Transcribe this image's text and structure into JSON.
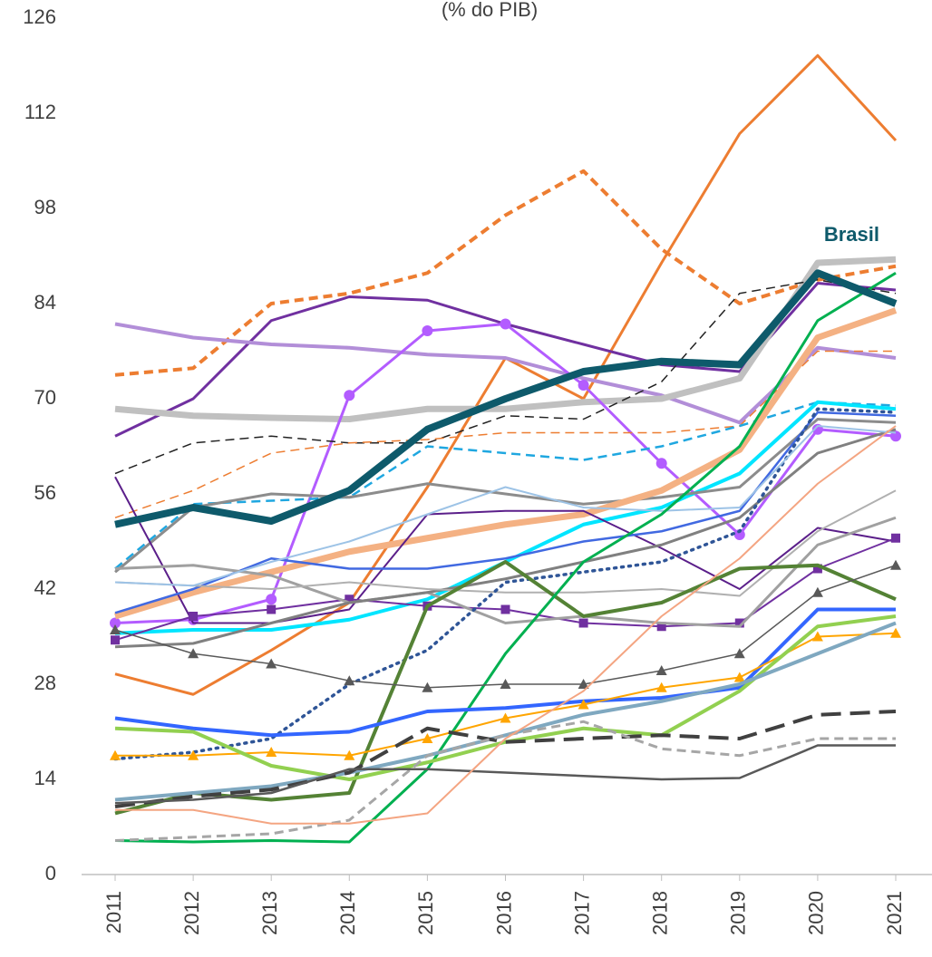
{
  "chart_data": {
    "type": "line",
    "subtitle": "(% do PIB)",
    "categories": [
      "2011",
      "2012",
      "2013",
      "2014",
      "2015",
      "2016",
      "2017",
      "2018",
      "2019",
      "2020",
      "2021"
    ],
    "ylim": [
      0,
      126
    ],
    "yticks": [
      0,
      14,
      28,
      42,
      56,
      70,
      84,
      98,
      112,
      126
    ],
    "grid": false,
    "series": [
      {
        "name": "Brasil",
        "color": "#0e5a6b",
        "width": 8,
        "values": [
          51.5,
          54,
          52,
          56.5,
          65.5,
          70,
          74,
          75.5,
          75,
          88.5,
          84
        ]
      },
      {
        "color": "#ed7d31",
        "width": 3,
        "values": [
          29.5,
          26.5,
          33,
          40,
          57,
          76,
          70,
          90,
          109,
          120.5,
          108
        ]
      },
      {
        "color": "#ed7d31",
        "width": 4,
        "dash": "dashed",
        "values": [
          73.5,
          74.5,
          84,
          85.5,
          88.5,
          97,
          103.5,
          92,
          84,
          87.5,
          89.5
        ]
      },
      {
        "color": "#7030a0",
        "width": 3,
        "values": [
          64.5,
          70,
          81.5,
          85,
          84.5,
          81,
          78,
          75,
          74,
          87,
          86
        ]
      },
      {
        "color": "#b28ed8",
        "width": 4,
        "values": [
          81,
          79,
          78,
          77.5,
          76.5,
          76,
          73,
          70.5,
          66.5,
          77.5,
          76
        ]
      },
      {
        "color": "#c0c0c0",
        "width": 7,
        "values": [
          68.5,
          67.5,
          67.2,
          67,
          68.5,
          68.5,
          69.5,
          70,
          73,
          90,
          90.5
        ]
      },
      {
        "color": "#b35cff",
        "width": 3,
        "marker": "circle",
        "values": [
          37,
          37.5,
          40.5,
          70.5,
          80,
          81,
          72,
          60.5,
          50,
          65.5,
          64.5
        ]
      },
      {
        "color": "#222222",
        "width": 1.5,
        "dash": "dashed",
        "values": [
          59,
          63.5,
          64.5,
          63.5,
          63.5,
          67.5,
          67,
          72.5,
          85.5,
          87.5,
          85.5
        ]
      },
      {
        "color": "#ed7d31",
        "width": 1.5,
        "dash": "dashed",
        "values": [
          52.5,
          56.5,
          62,
          63.5,
          64,
          65,
          65,
          65,
          66,
          77,
          77
        ]
      },
      {
        "color": "#1fa7e0",
        "width": 2.5,
        "dash": "dashed",
        "values": [
          45,
          54.5,
          55,
          55.5,
          63,
          62,
          61,
          63,
          66,
          69.5,
          69
        ]
      },
      {
        "color": "#00e5ff",
        "width": 4,
        "values": [
          35.5,
          36,
          36,
          37.5,
          40.5,
          46,
          51.5,
          54,
          59,
          69.5,
          68.5
        ]
      },
      {
        "color": "#8c8c8c",
        "width": 3,
        "values": [
          44.5,
          54,
          56,
          55.5,
          57.5,
          56,
          54.5,
          55.5,
          57,
          67,
          66.5
        ]
      },
      {
        "color": "#f4b183",
        "width": 7,
        "values": [
          38,
          41.5,
          44.5,
          47.5,
          49.5,
          51.5,
          53,
          56.5,
          62.5,
          79,
          83
        ]
      },
      {
        "color": "#5b1f8a",
        "width": 2,
        "values": [
          58.5,
          37,
          37,
          39,
          53,
          53.5,
          53.5,
          48,
          42,
          51,
          49
        ]
      },
      {
        "color": "#7030a0",
        "width": 2,
        "marker": "square",
        "values": [
          34.5,
          38,
          39,
          40.5,
          39.5,
          39,
          37,
          36.5,
          37,
          45,
          49.5
        ]
      },
      {
        "color": "#4169e1",
        "width": 2.5,
        "values": [
          38.5,
          42,
          46.5,
          45,
          45,
          46.5,
          49,
          50.5,
          53.5,
          68,
          67.5
        ]
      },
      {
        "color": "#a0a0a0",
        "width": 3,
        "values": [
          45,
          45.5,
          44,
          40,
          41.5,
          37,
          38,
          37,
          36.5,
          48.5,
          52.5
        ]
      },
      {
        "color": "#808080",
        "width": 3,
        "values": [
          33.5,
          34,
          37,
          40,
          41.5,
          43.5,
          46,
          48.5,
          52.5,
          62,
          65.5
        ]
      },
      {
        "color": "#b0b0b0",
        "width": 2,
        "values": [
          43,
          42.5,
          42,
          43,
          42,
          41.5,
          41.5,
          42,
          41,
          50.5,
          56.5
        ]
      },
      {
        "color": "#2f5597",
        "width": 3.5,
        "dash": "dotted",
        "values": [
          17,
          18,
          20,
          28,
          33,
          43,
          44.5,
          46,
          50.5,
          68.5,
          68
        ]
      },
      {
        "color": "#9dc3e6",
        "width": 2,
        "values": [
          43,
          42.5,
          46,
          49,
          53,
          57,
          54,
          53.5,
          54,
          66,
          65
        ]
      },
      {
        "color": "#548235",
        "width": 4,
        "values": [
          9,
          12,
          11,
          12,
          39.5,
          46,
          38,
          40,
          45,
          45.5,
          40.5
        ]
      },
      {
        "color": "#00b050",
        "width": 3,
        "values": [
          5,
          4.8,
          5,
          4.8,
          15.5,
          32.5,
          46,
          53,
          63,
          81.5,
          88.5
        ]
      },
      {
        "color": "#595959",
        "width": 1.5,
        "marker": "triangle",
        "values": [
          36,
          32.5,
          31,
          28.5,
          27.5,
          28,
          28,
          30,
          32.5,
          41.5,
          45.5
        ]
      },
      {
        "color": "#3366ff",
        "width": 4,
        "values": [
          23,
          21.5,
          20.5,
          21,
          24,
          24.5,
          25.5,
          26,
          27.5,
          39,
          39
        ]
      },
      {
        "color": "#ffa500",
        "width": 2,
        "marker": "triangle",
        "values": [
          17.5,
          17.5,
          18,
          17.5,
          20,
          23,
          25,
          27.5,
          29,
          35,
          35.5
        ]
      },
      {
        "color": "#92d050",
        "width": 4,
        "values": [
          21.5,
          21,
          16,
          14,
          16.5,
          19.5,
          21.5,
          20.5,
          27,
          36.5,
          38
        ]
      },
      {
        "color": "#7fa8c0",
        "width": 4,
        "values": [
          11,
          12,
          13,
          15,
          17.5,
          20.5,
          23.5,
          25.5,
          28,
          32.5,
          37
        ]
      },
      {
        "color": "#404040",
        "width": 4,
        "dash": "long-dash",
        "values": [
          10,
          11.5,
          12.5,
          15,
          21.5,
          19.5,
          20,
          20.5,
          20,
          23.5,
          24
        ]
      },
      {
        "color": "#a6a6a6",
        "width": 3,
        "dash": "dashed",
        "values": [
          5,
          5.5,
          6,
          8,
          17.5,
          20.5,
          22.5,
          18.5,
          17.5,
          20,
          20
        ]
      },
      {
        "color": "#595959",
        "width": 2.5,
        "values": [
          10.5,
          11,
          12,
          15.5,
          15.5,
          15,
          14.5,
          14,
          14.2,
          19,
          19
        ]
      },
      {
        "color": "#f4a582",
        "width": 2,
        "values": [
          9.5,
          9.5,
          7.5,
          7.5,
          9,
          20,
          27,
          38,
          46.5,
          57.5,
          66
        ]
      }
    ]
  }
}
